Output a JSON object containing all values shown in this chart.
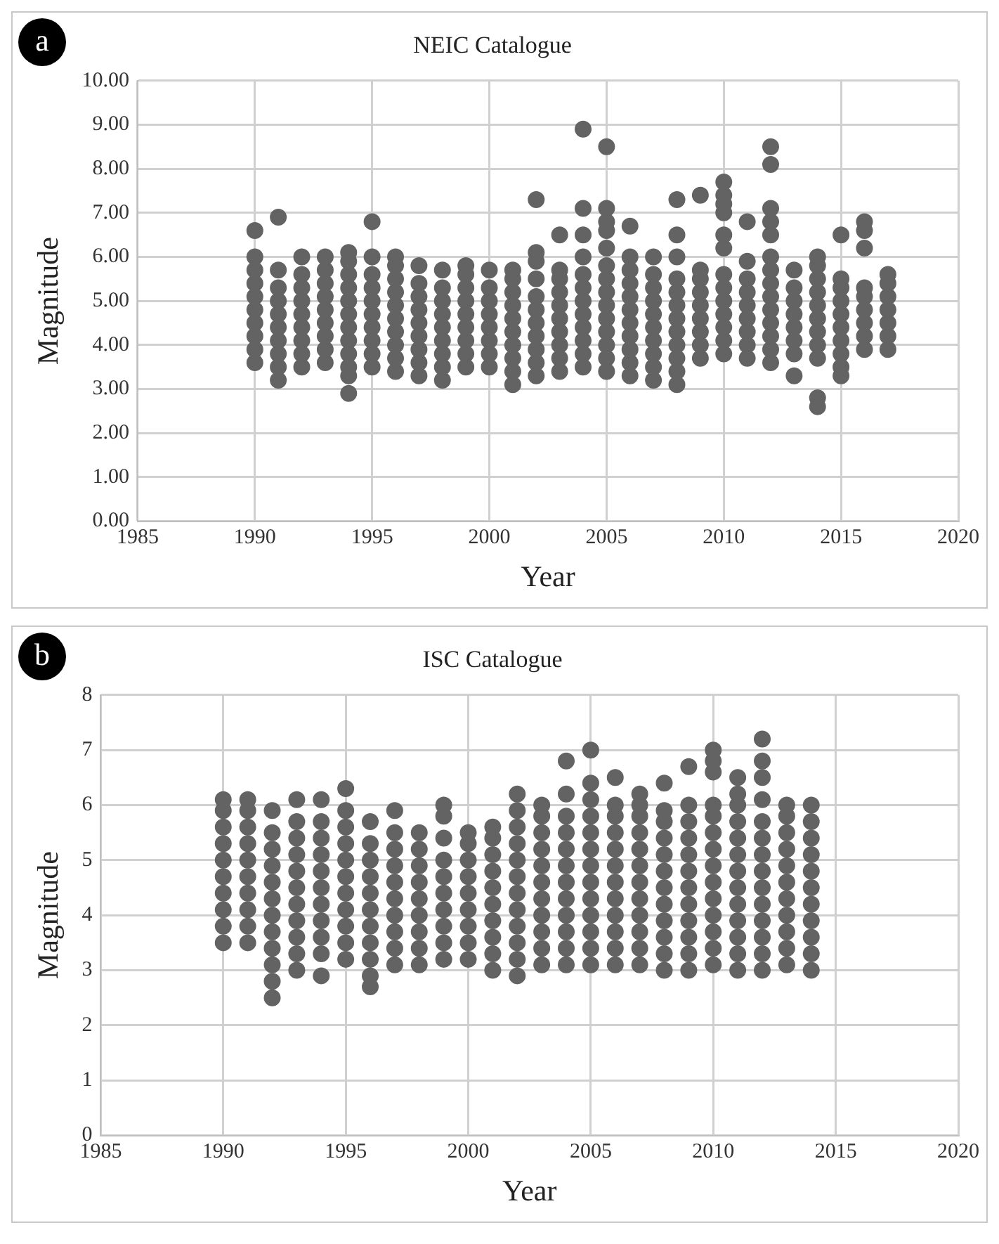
{
  "chart_data": [
    {
      "type": "scatter",
      "title": "NEIC Catalogue",
      "xlabel": "Year",
      "ylabel": "Magnitude",
      "annotations": [
        "a"
      ],
      "marker": "circle",
      "grid": true,
      "legend": false,
      "xlim": [
        1985,
        2020
      ],
      "xticks": [
        1985,
        1990,
        1995,
        2000,
        2005,
        2010,
        2015,
        2020
      ],
      "ylim": [
        0,
        10
      ],
      "yticks": [
        {
          "value": 0,
          "label": "0.00"
        },
        {
          "value": 1,
          "label": "1.00"
        },
        {
          "value": 2,
          "label": "2.00"
        },
        {
          "value": 3,
          "label": "3.00"
        },
        {
          "value": 4,
          "label": "4.00"
        },
        {
          "value": 5,
          "label": "5.00"
        },
        {
          "value": 6,
          "label": "6.00"
        },
        {
          "value": 7,
          "label": "7.00"
        },
        {
          "value": 8,
          "label": "8.00"
        },
        {
          "value": 9,
          "label": "9.00"
        },
        {
          "value": 10,
          "label": "10.00"
        }
      ],
      "series": [
        {
          "color": "#636363",
          "x": [
            1990,
            1990,
            1990,
            1990,
            1990,
            1990,
            1990,
            1990,
            1990,
            1990
          ],
          "values": [
            3.6,
            3.9,
            4.2,
            4.5,
            4.8,
            5.1,
            5.4,
            5.7,
            6.0,
            6.6
          ]
        },
        {
          "color": "#636363",
          "x": [
            1991,
            1991,
            1991,
            1991,
            1991,
            1991,
            1991,
            1991,
            1991,
            1991
          ],
          "values": [
            3.2,
            3.5,
            3.8,
            4.1,
            4.4,
            4.7,
            5.0,
            5.3,
            5.7,
            6.9
          ]
        },
        {
          "color": "#636363",
          "x": [
            1992,
            1992,
            1992,
            1992,
            1992,
            1992,
            1992,
            1992,
            1992
          ],
          "values": [
            3.5,
            3.8,
            4.1,
            4.4,
            4.7,
            5.0,
            5.3,
            5.6,
            6.0
          ]
        },
        {
          "color": "#636363",
          "x": [
            1993,
            1993,
            1993,
            1993,
            1993,
            1993,
            1993,
            1993,
            1993
          ],
          "values": [
            3.6,
            3.9,
            4.2,
            4.5,
            4.8,
            5.1,
            5.4,
            5.7,
            6.0
          ]
        },
        {
          "color": "#636363",
          "x": [
            1994,
            1994,
            1994,
            1994,
            1994,
            1994,
            1994,
            1994,
            1994,
            1994,
            1994,
            1994
          ],
          "values": [
            2.9,
            3.3,
            3.5,
            3.8,
            4.1,
            4.4,
            4.7,
            5.0,
            5.3,
            5.6,
            5.9,
            6.1
          ]
        },
        {
          "color": "#636363",
          "x": [
            1995,
            1995,
            1995,
            1995,
            1995,
            1995,
            1995,
            1995,
            1995,
            1995
          ],
          "values": [
            3.5,
            3.8,
            4.1,
            4.4,
            4.7,
            5.0,
            5.3,
            5.6,
            6.0,
            6.8
          ]
        },
        {
          "color": "#636363",
          "x": [
            1996,
            1996,
            1996,
            1996,
            1996,
            1996,
            1996,
            1996,
            1996,
            1996
          ],
          "values": [
            3.4,
            3.7,
            4.0,
            4.3,
            4.6,
            4.9,
            5.2,
            5.5,
            5.8,
            6.0
          ]
        },
        {
          "color": "#636363",
          "x": [
            1997,
            1997,
            1997,
            1997,
            1997,
            1997,
            1997,
            1997,
            1997
          ],
          "values": [
            3.3,
            3.6,
            3.9,
            4.2,
            4.5,
            4.8,
            5.1,
            5.4,
            5.8
          ]
        },
        {
          "color": "#636363",
          "x": [
            1998,
            1998,
            1998,
            1998,
            1998,
            1998,
            1998,
            1998,
            1998
          ],
          "values": [
            3.2,
            3.5,
            3.8,
            4.1,
            4.4,
            4.7,
            5.0,
            5.3,
            5.7
          ]
        },
        {
          "color": "#636363",
          "x": [
            1999,
            1999,
            1999,
            1999,
            1999,
            1999,
            1999,
            1999,
            1999
          ],
          "values": [
            3.5,
            3.8,
            4.1,
            4.4,
            4.7,
            5.0,
            5.3,
            5.6,
            5.8
          ]
        },
        {
          "color": "#636363",
          "x": [
            2000,
            2000,
            2000,
            2000,
            2000,
            2000,
            2000,
            2000
          ],
          "values": [
            3.5,
            3.8,
            4.1,
            4.4,
            4.7,
            5.0,
            5.3,
            5.7
          ]
        },
        {
          "color": "#636363",
          "x": [
            2001,
            2001,
            2001,
            2001,
            2001,
            2001,
            2001,
            2001,
            2001,
            2001
          ],
          "values": [
            3.1,
            3.4,
            3.7,
            4.0,
            4.3,
            4.6,
            4.9,
            5.2,
            5.5,
            5.7
          ]
        },
        {
          "color": "#636363",
          "x": [
            2002,
            2002,
            2002,
            2002,
            2002,
            2002,
            2002,
            2002,
            2002,
            2002,
            2002
          ],
          "values": [
            3.3,
            3.6,
            3.9,
            4.2,
            4.5,
            4.8,
            5.1,
            5.5,
            5.9,
            6.1,
            7.3
          ]
        },
        {
          "color": "#636363",
          "x": [
            2003,
            2003,
            2003,
            2003,
            2003,
            2003,
            2003,
            2003,
            2003,
            2003
          ],
          "values": [
            3.4,
            3.7,
            4.0,
            4.3,
            4.6,
            4.9,
            5.2,
            5.5,
            5.7,
            6.5
          ]
        },
        {
          "color": "#636363",
          "x": [
            2004,
            2004,
            2004,
            2004,
            2004,
            2004,
            2004,
            2004,
            2004,
            2004,
            2004,
            2004
          ],
          "values": [
            3.5,
            3.8,
            4.1,
            4.4,
            4.7,
            5.0,
            5.3,
            5.6,
            6.0,
            6.5,
            7.1,
            8.9
          ]
        },
        {
          "color": "#636363",
          "x": [
            2005,
            2005,
            2005,
            2005,
            2005,
            2005,
            2005,
            2005,
            2005,
            2005,
            2005,
            2005,
            2005,
            2005
          ],
          "values": [
            3.4,
            3.7,
            4.0,
            4.3,
            4.6,
            4.9,
            5.2,
            5.5,
            5.8,
            6.2,
            6.6,
            6.8,
            7.1,
            8.5
          ]
        },
        {
          "color": "#636363",
          "x": [
            2006,
            2006,
            2006,
            2006,
            2006,
            2006,
            2006,
            2006,
            2006,
            2006,
            2006
          ],
          "values": [
            3.3,
            3.6,
            3.9,
            4.2,
            4.5,
            4.8,
            5.1,
            5.4,
            5.7,
            6.0,
            6.7
          ]
        },
        {
          "color": "#636363",
          "x": [
            2007,
            2007,
            2007,
            2007,
            2007,
            2007,
            2007,
            2007,
            2007,
            2007
          ],
          "values": [
            3.2,
            3.5,
            3.8,
            4.1,
            4.4,
            4.7,
            5.0,
            5.3,
            5.6,
            6.0
          ]
        },
        {
          "color": "#636363",
          "x": [
            2008,
            2008,
            2008,
            2008,
            2008,
            2008,
            2008,
            2008,
            2008,
            2008,
            2008,
            2008
          ],
          "values": [
            3.1,
            3.4,
            3.7,
            4.0,
            4.3,
            4.6,
            4.9,
            5.2,
            5.5,
            6.0,
            6.5,
            7.3
          ]
        },
        {
          "color": "#636363",
          "x": [
            2009,
            2009,
            2009,
            2009,
            2009,
            2009,
            2009,
            2009,
            2009
          ],
          "values": [
            3.7,
            4.0,
            4.3,
            4.6,
            4.9,
            5.2,
            5.5,
            5.7,
            7.4
          ]
        },
        {
          "color": "#636363",
          "x": [
            2010,
            2010,
            2010,
            2010,
            2010,
            2010,
            2010,
            2010,
            2010,
            2010,
            2010,
            2010,
            2010
          ],
          "values": [
            3.8,
            4.1,
            4.4,
            4.7,
            5.0,
            5.3,
            5.6,
            6.2,
            6.5,
            7.0,
            7.2,
            7.4,
            7.7
          ]
        },
        {
          "color": "#636363",
          "x": [
            2011,
            2011,
            2011,
            2011,
            2011,
            2011,
            2011,
            2011,
            2011
          ],
          "values": [
            3.7,
            4.0,
            4.3,
            4.6,
            4.9,
            5.2,
            5.5,
            5.9,
            6.8
          ]
        },
        {
          "color": "#636363",
          "x": [
            2012,
            2012,
            2012,
            2012,
            2012,
            2012,
            2012,
            2012,
            2012,
            2012,
            2012,
            2012,
            2012,
            2012
          ],
          "values": [
            3.6,
            3.9,
            4.2,
            4.5,
            4.8,
            5.1,
            5.4,
            5.7,
            6.0,
            6.5,
            6.8,
            7.1,
            8.1,
            8.5
          ]
        },
        {
          "color": "#636363",
          "x": [
            2013,
            2013,
            2013,
            2013,
            2013,
            2013,
            2013,
            2013
          ],
          "values": [
            3.3,
            3.8,
            4.1,
            4.4,
            4.7,
            5.0,
            5.3,
            5.7
          ]
        },
        {
          "color": "#636363",
          "x": [
            2014,
            2014,
            2014,
            2014,
            2014,
            2014,
            2014,
            2014,
            2014,
            2014,
            2014
          ],
          "values": [
            2.6,
            2.8,
            3.7,
            4.0,
            4.3,
            4.6,
            4.9,
            5.2,
            5.5,
            5.8,
            6.0
          ]
        },
        {
          "color": "#636363",
          "x": [
            2015,
            2015,
            2015,
            2015,
            2015,
            2015,
            2015,
            2015,
            2015,
            2015
          ],
          "values": [
            3.3,
            3.5,
            3.8,
            4.1,
            4.4,
            4.7,
            5.0,
            5.3,
            5.5,
            6.5
          ]
        },
        {
          "color": "#636363",
          "x": [
            2016,
            2016,
            2016,
            2016,
            2016,
            2016,
            2016,
            2016,
            2016
          ],
          "values": [
            3.9,
            4.2,
            4.5,
            4.8,
            5.1,
            5.3,
            6.2,
            6.6,
            6.8
          ]
        },
        {
          "color": "#636363",
          "x": [
            2017,
            2017,
            2017,
            2017,
            2017,
            2017,
            2017
          ],
          "values": [
            3.9,
            4.2,
            4.5,
            4.8,
            5.1,
            5.4,
            5.6
          ]
        }
      ]
    },
    {
      "type": "scatter",
      "title": "ISC Catalogue",
      "xlabel": "Year",
      "ylabel": "Magnitude",
      "annotations": [
        "b"
      ],
      "marker": "circle",
      "grid": true,
      "legend": false,
      "xlim": [
        1985,
        2020
      ],
      "xticks": [
        1985,
        1990,
        1995,
        2000,
        2005,
        2010,
        2015,
        2020
      ],
      "ylim": [
        0,
        8
      ],
      "yticks": [
        0,
        1,
        2,
        3,
        4,
        5,
        6,
        7,
        8
      ],
      "series": [
        {
          "color": "#636363",
          "x": [
            1990,
            1990,
            1990,
            1990,
            1990,
            1990,
            1990,
            1990,
            1990,
            1990
          ],
          "values": [
            3.5,
            3.8,
            4.1,
            4.4,
            4.7,
            5.0,
            5.3,
            5.6,
            5.9,
            6.1
          ]
        },
        {
          "color": "#636363",
          "x": [
            1991,
            1991,
            1991,
            1991,
            1991,
            1991,
            1991,
            1991,
            1991,
            1991
          ],
          "values": [
            3.5,
            3.8,
            4.1,
            4.4,
            4.7,
            5.0,
            5.3,
            5.6,
            5.9,
            6.1
          ]
        },
        {
          "color": "#636363",
          "x": [
            1992,
            1992,
            1992,
            1992,
            1992,
            1992,
            1992,
            1992,
            1992,
            1992,
            1992,
            1992
          ],
          "values": [
            2.5,
            2.8,
            3.1,
            3.4,
            3.7,
            4.0,
            4.3,
            4.6,
            4.9,
            5.2,
            5.5,
            5.9
          ]
        },
        {
          "color": "#636363",
          "x": [
            1993,
            1993,
            1993,
            1993,
            1993,
            1993,
            1993,
            1993,
            1993,
            1993,
            1993
          ],
          "values": [
            3.0,
            3.3,
            3.6,
            3.9,
            4.2,
            4.5,
            4.8,
            5.1,
            5.4,
            5.7,
            6.1
          ]
        },
        {
          "color": "#636363",
          "x": [
            1994,
            1994,
            1994,
            1994,
            1994,
            1994,
            1994,
            1994,
            1994,
            1994,
            1994
          ],
          "values": [
            2.9,
            3.3,
            3.6,
            3.9,
            4.2,
            4.5,
            4.8,
            5.1,
            5.4,
            5.7,
            6.1
          ]
        },
        {
          "color": "#636363",
          "x": [
            1995,
            1995,
            1995,
            1995,
            1995,
            1995,
            1995,
            1995,
            1995,
            1995,
            1995
          ],
          "values": [
            3.2,
            3.5,
            3.8,
            4.1,
            4.4,
            4.7,
            5.0,
            5.3,
            5.6,
            5.9,
            6.3
          ]
        },
        {
          "color": "#636363",
          "x": [
            1996,
            1996,
            1996,
            1996,
            1996,
            1996,
            1996,
            1996,
            1996,
            1996,
            1996
          ],
          "values": [
            2.7,
            2.9,
            3.2,
            3.5,
            3.8,
            4.1,
            4.4,
            4.7,
            5.0,
            5.3,
            5.7
          ]
        },
        {
          "color": "#636363",
          "x": [
            1997,
            1997,
            1997,
            1997,
            1997,
            1997,
            1997,
            1997,
            1997,
            1997
          ],
          "values": [
            3.1,
            3.4,
            3.7,
            4.0,
            4.3,
            4.6,
            4.9,
            5.2,
            5.5,
            5.9
          ]
        },
        {
          "color": "#636363",
          "x": [
            1998,
            1998,
            1998,
            1998,
            1998,
            1998,
            1998,
            1998,
            1998
          ],
          "values": [
            3.1,
            3.4,
            3.7,
            4.0,
            4.3,
            4.6,
            4.9,
            5.2,
            5.5
          ]
        },
        {
          "color": "#636363",
          "x": [
            1999,
            1999,
            1999,
            1999,
            1999,
            1999,
            1999,
            1999,
            1999,
            1999
          ],
          "values": [
            3.2,
            3.5,
            3.8,
            4.1,
            4.4,
            4.7,
            5.0,
            5.4,
            5.8,
            6.0
          ]
        },
        {
          "color": "#636363",
          "x": [
            2000,
            2000,
            2000,
            2000,
            2000,
            2000,
            2000,
            2000,
            2000
          ],
          "values": [
            3.2,
            3.5,
            3.8,
            4.1,
            4.4,
            4.7,
            5.0,
            5.3,
            5.5
          ]
        },
        {
          "color": "#636363",
          "x": [
            2001,
            2001,
            2001,
            2001,
            2001,
            2001,
            2001,
            2001,
            2001,
            2001
          ],
          "values": [
            3.0,
            3.3,
            3.6,
            3.9,
            4.2,
            4.5,
            4.8,
            5.1,
            5.4,
            5.6
          ]
        },
        {
          "color": "#636363",
          "x": [
            2002,
            2002,
            2002,
            2002,
            2002,
            2002,
            2002,
            2002,
            2002,
            2002,
            2002,
            2002
          ],
          "values": [
            2.9,
            3.2,
            3.5,
            3.8,
            4.1,
            4.4,
            4.7,
            5.0,
            5.3,
            5.6,
            5.9,
            6.2
          ]
        },
        {
          "color": "#636363",
          "x": [
            2003,
            2003,
            2003,
            2003,
            2003,
            2003,
            2003,
            2003,
            2003,
            2003,
            2003
          ],
          "values": [
            3.1,
            3.4,
            3.7,
            4.0,
            4.3,
            4.6,
            4.9,
            5.2,
            5.5,
            5.8,
            6.0
          ]
        },
        {
          "color": "#636363",
          "x": [
            2004,
            2004,
            2004,
            2004,
            2004,
            2004,
            2004,
            2004,
            2004,
            2004,
            2004,
            2004
          ],
          "values": [
            3.1,
            3.4,
            3.7,
            4.0,
            4.3,
            4.6,
            4.9,
            5.2,
            5.5,
            5.8,
            6.2,
            6.8
          ]
        },
        {
          "color": "#636363",
          "x": [
            2005,
            2005,
            2005,
            2005,
            2005,
            2005,
            2005,
            2005,
            2005,
            2005,
            2005,
            2005,
            2005
          ],
          "values": [
            3.1,
            3.4,
            3.7,
            4.0,
            4.3,
            4.6,
            4.9,
            5.2,
            5.5,
            5.8,
            6.1,
            6.4,
            7.0
          ]
        },
        {
          "color": "#636363",
          "x": [
            2006,
            2006,
            2006,
            2006,
            2006,
            2006,
            2006,
            2006,
            2006,
            2006,
            2006,
            2006
          ],
          "values": [
            3.1,
            3.4,
            3.7,
            4.0,
            4.3,
            4.6,
            4.9,
            5.2,
            5.5,
            5.8,
            6.0,
            6.5
          ]
        },
        {
          "color": "#636363",
          "x": [
            2007,
            2007,
            2007,
            2007,
            2007,
            2007,
            2007,
            2007,
            2007,
            2007,
            2007,
            2007
          ],
          "values": [
            3.1,
            3.4,
            3.7,
            4.0,
            4.3,
            4.6,
            4.9,
            5.2,
            5.5,
            5.8,
            6.0,
            6.2
          ]
        },
        {
          "color": "#636363",
          "x": [
            2008,
            2008,
            2008,
            2008,
            2008,
            2008,
            2008,
            2008,
            2008,
            2008,
            2008,
            2008
          ],
          "values": [
            3.0,
            3.3,
            3.6,
            3.9,
            4.2,
            4.5,
            4.8,
            5.1,
            5.4,
            5.7,
            5.9,
            6.4
          ]
        },
        {
          "color": "#636363",
          "x": [
            2009,
            2009,
            2009,
            2009,
            2009,
            2009,
            2009,
            2009,
            2009,
            2009,
            2009,
            2009
          ],
          "values": [
            3.0,
            3.3,
            3.6,
            3.9,
            4.2,
            4.5,
            4.8,
            5.1,
            5.4,
            5.7,
            6.0,
            6.7
          ]
        },
        {
          "color": "#636363",
          "x": [
            2010,
            2010,
            2010,
            2010,
            2010,
            2010,
            2010,
            2010,
            2010,
            2010,
            2010,
            2010,
            2010,
            2010
          ],
          "values": [
            3.1,
            3.4,
            3.7,
            4.0,
            4.3,
            4.6,
            4.9,
            5.2,
            5.5,
            5.8,
            6.0,
            6.6,
            6.8,
            7.0
          ]
        },
        {
          "color": "#636363",
          "x": [
            2011,
            2011,
            2011,
            2011,
            2011,
            2011,
            2011,
            2011,
            2011,
            2011,
            2011,
            2011,
            2011
          ],
          "values": [
            3.0,
            3.3,
            3.6,
            3.9,
            4.2,
            4.5,
            4.8,
            5.1,
            5.4,
            5.7,
            6.0,
            6.2,
            6.5
          ]
        },
        {
          "color": "#636363",
          "x": [
            2012,
            2012,
            2012,
            2012,
            2012,
            2012,
            2012,
            2012,
            2012,
            2012,
            2012,
            2012,
            2012,
            2012
          ],
          "values": [
            3.0,
            3.3,
            3.6,
            3.9,
            4.2,
            4.5,
            4.8,
            5.1,
            5.4,
            5.7,
            6.1,
            6.5,
            6.8,
            7.2
          ]
        },
        {
          "color": "#636363",
          "x": [
            2013,
            2013,
            2013,
            2013,
            2013,
            2013,
            2013,
            2013,
            2013,
            2013,
            2013
          ],
          "values": [
            3.1,
            3.4,
            3.7,
            4.0,
            4.3,
            4.6,
            4.9,
            5.2,
            5.5,
            5.8,
            6.0
          ]
        },
        {
          "color": "#636363",
          "x": [
            2014,
            2014,
            2014,
            2014,
            2014,
            2014,
            2014,
            2014,
            2014,
            2014,
            2014
          ],
          "values": [
            3.0,
            3.3,
            3.6,
            3.9,
            4.2,
            4.5,
            4.8,
            5.1,
            5.4,
            5.7,
            6.0
          ]
        }
      ]
    }
  ]
}
